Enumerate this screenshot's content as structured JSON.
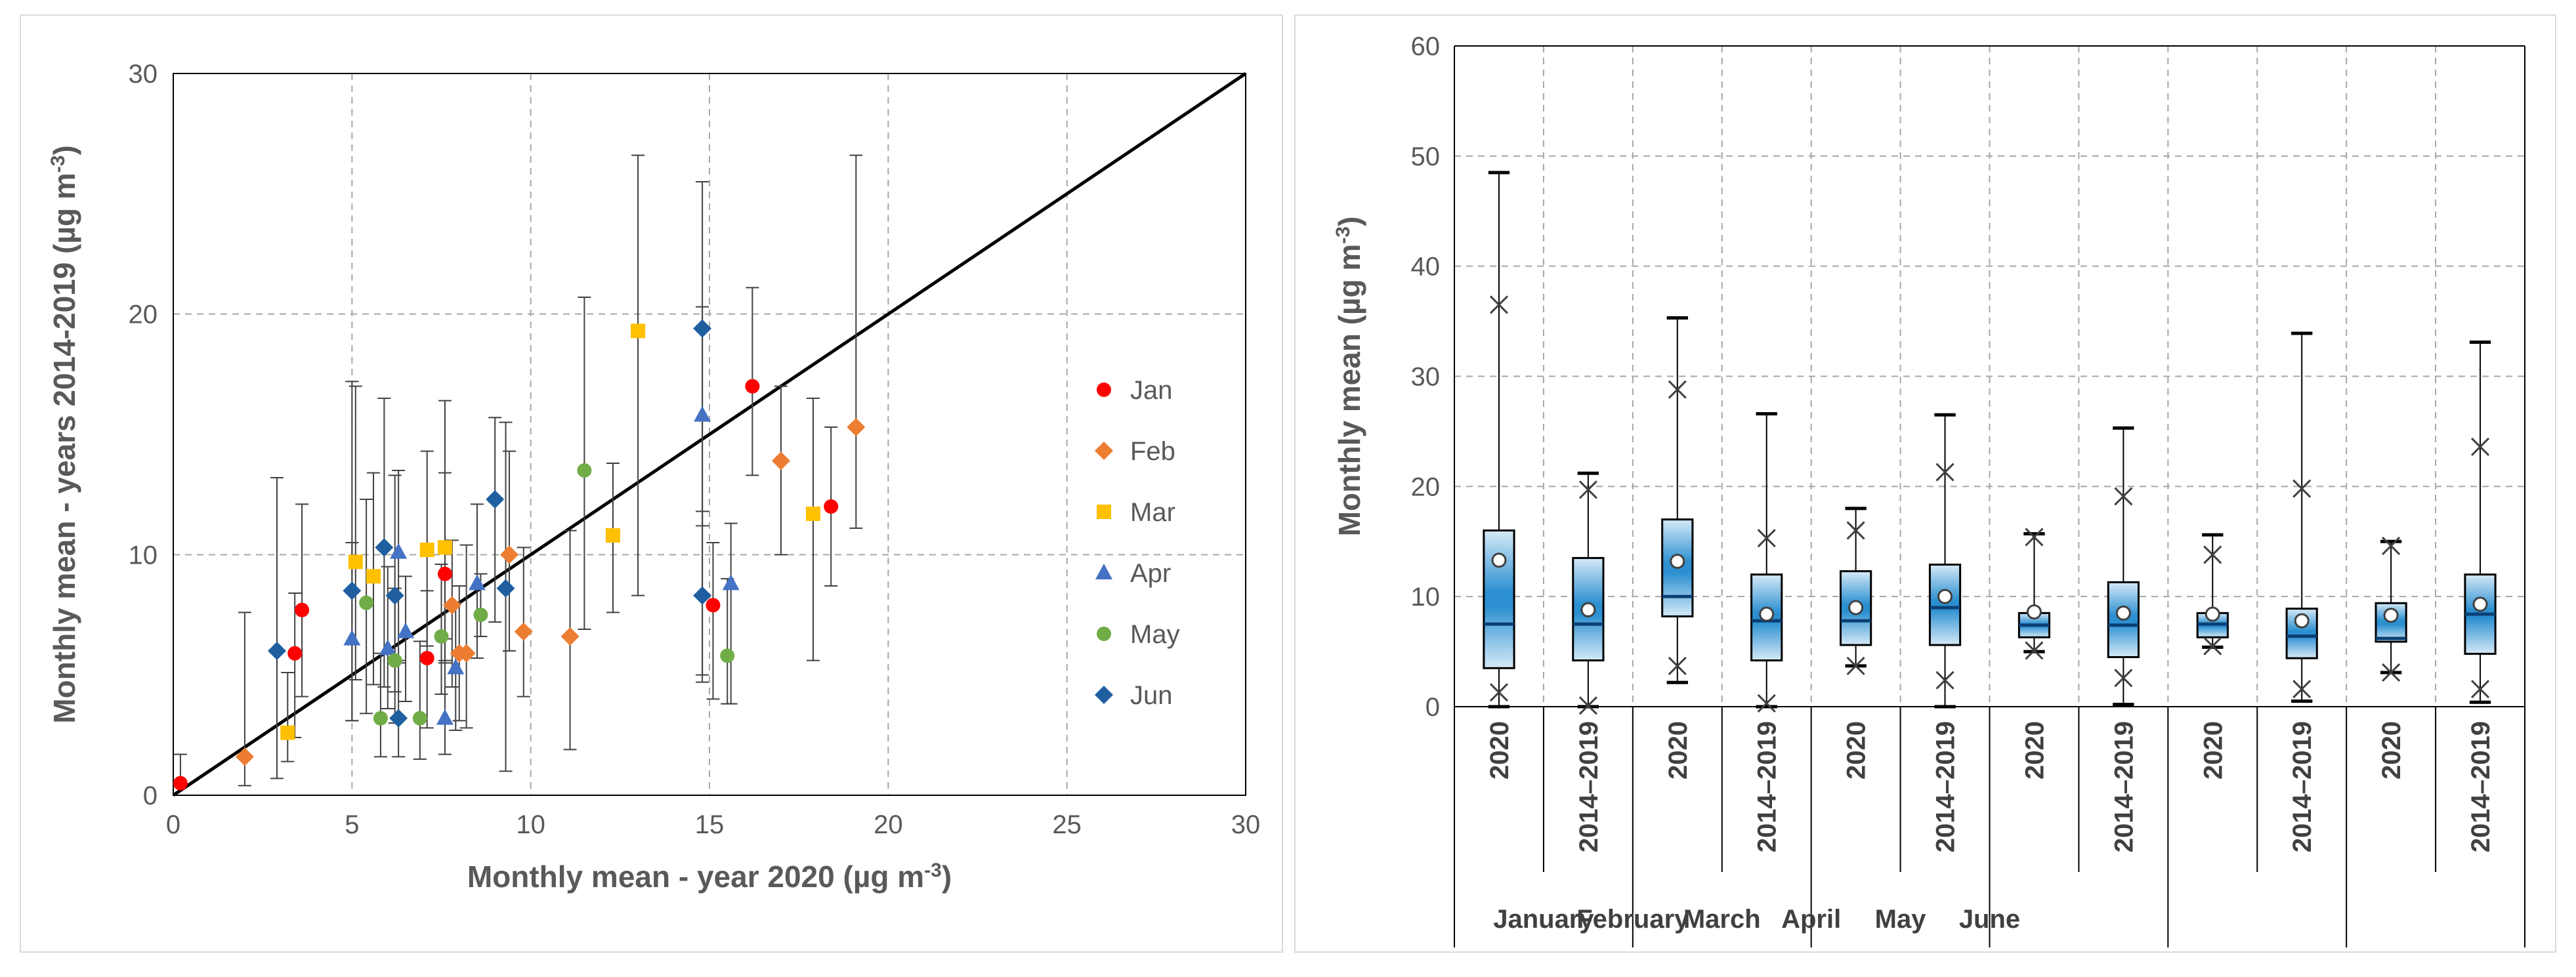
{
  "colors": {
    "jan": "#ff0000",
    "feb": "#ed7d31",
    "mar": "#ffc000",
    "apr": "#4472c4",
    "may": "#70ad47",
    "jun": "#1f5fa0",
    "box_light": "#cfe5f6",
    "box_dark": "#1f86c8",
    "grid": "#a6a6a6",
    "axis": "#000000"
  },
  "chart_data": [
    {
      "type": "scatter",
      "xlabel": "Monthly mean - year 2020 (µg m⁻³)",
      "ylabel": "Monthly mean - years 2014-2019 (µg m⁻³)",
      "xlim": [
        0,
        30
      ],
      "ylim": [
        0,
        30
      ],
      "xticks": [
        "0",
        "5",
        "10",
        "15",
        "20",
        "25",
        "30"
      ],
      "yticks": [
        "0",
        "10",
        "20",
        "30"
      ],
      "grid": "dashed",
      "reference_line": "1:1",
      "legend_position": "right",
      "series": [
        {
          "name": "Jan",
          "marker": "circle",
          "color": "#ff0000",
          "points": [
            [
              0.2,
              0.5,
              0,
              1.2
            ],
            [
              3.4,
              5.9,
              3.5,
              2.5
            ],
            [
              3.6,
              7.7,
              3.6,
              4.4
            ],
            [
              7.6,
              9.2,
              3.7,
              4.2
            ],
            [
              7.1,
              5.7,
              2.9,
              2.8
            ],
            [
              15.1,
              7.9,
              3.9,
              2.6
            ],
            [
              16.2,
              17.0,
              3.7,
              4.1
            ],
            [
              18.4,
              12.0,
              3.3,
              3.3
            ]
          ]
        },
        {
          "name": "Feb",
          "marker": "diamond",
          "color": "#ed7d31",
          "points": [
            [
              2.0,
              1.6,
              1.2,
              6.0
            ],
            [
              7.8,
              7.9,
              3.4,
              2.7
            ],
            [
              8.0,
              5.9,
              2.8,
              2.8
            ],
            [
              8.2,
              5.9,
              3.1,
              4.5
            ],
            [
              9.4,
              10.0,
              4.0,
              4.3
            ],
            [
              9.8,
              6.8,
              2.7,
              3.5
            ],
            [
              11.1,
              6.6,
              4.7,
              4.4
            ],
            [
              17.0,
              13.9,
              3.9,
              3.1
            ],
            [
              19.1,
              15.3,
              4.2,
              11.3
            ]
          ]
        },
        {
          "name": "Mar",
          "marker": "square",
          "color": "#ffc000",
          "points": [
            [
              3.2,
              2.6,
              1.2,
              2.5
            ],
            [
              5.1,
              9.7,
              4.9,
              7.3
            ],
            [
              5.6,
              9.1,
              4.5,
              4.3
            ],
            [
              7.1,
              10.2,
              4.0,
              4.1
            ],
            [
              7.6,
              10.3,
              4.7,
              6.1
            ],
            [
              12.3,
              10.8,
              3.2,
              3.0
            ],
            [
              13.0,
              19.3,
              11.0,
              7.3
            ],
            [
              17.9,
              11.7,
              6.1,
              4.8
            ]
          ]
        },
        {
          "name": "Apr",
          "marker": "triangle",
          "color": "#4472c4",
          "points": [
            [
              5.0,
              6.5,
              3.4,
              4.0
            ],
            [
              6.0,
              6.1,
              2.5,
              3.4
            ],
            [
              6.3,
              10.1,
              4.6,
              3.4
            ],
            [
              6.5,
              6.8,
              2.9,
              2.3
            ],
            [
              7.6,
              3.2,
              1.5,
              3.3
            ],
            [
              7.9,
              5.3,
              2.6,
              2.7
            ],
            [
              8.5,
              8.8,
              3.1,
              3.3
            ],
            [
              14.8,
              15.8,
              4.6,
              4.5
            ],
            [
              15.6,
              8.8,
              5.0,
              2.5
            ]
          ]
        },
        {
          "name": "May",
          "marker": "circle",
          "color": "#70ad47",
          "points": [
            [
              5.4,
              8.0,
              4.6,
              4.3
            ],
            [
              5.8,
              3.2,
              1.6,
              2.7
            ],
            [
              6.2,
              5.6,
              2.6,
              3.0
            ],
            [
              6.9,
              3.2,
              1.7,
              3.2
            ],
            [
              7.5,
              6.6,
              2.4,
              3.0
            ],
            [
              8.6,
              7.5,
              0.9,
              1.7
            ],
            [
              11.5,
              13.5,
              6.6,
              7.2
            ],
            [
              15.5,
              5.8,
              2.0,
              3.2
            ]
          ]
        },
        {
          "name": "Jun",
          "marker": "diamond",
          "color": "#1f5fa0",
          "points": [
            [
              2.9,
              6.0,
              5.3,
              7.2
            ],
            [
              5.0,
              8.5,
              5.4,
              8.7
            ],
            [
              5.9,
              10.3,
              5.8,
              6.2
            ],
            [
              6.2,
              8.3,
              4.0,
              5.0
            ],
            [
              6.3,
              3.2,
              1.6,
              2.4
            ],
            [
              9.0,
              12.3,
              5.1,
              3.4
            ],
            [
              9.3,
              8.6,
              7.6,
              6.9
            ],
            [
              14.8,
              8.3,
              3.6,
              3.5
            ],
            [
              14.8,
              19.4,
              14.4,
              6.1
            ]
          ]
        }
      ]
    },
    {
      "type": "box",
      "ylabel": "Monthly mean (µg m⁻³)",
      "ylim": [
        0,
        60
      ],
      "yticks": [
        "0",
        "10",
        "20",
        "30",
        "40",
        "50",
        "60"
      ],
      "grid": "dashed",
      "months": [
        "January",
        "February",
        "March",
        "April",
        "May",
        "June"
      ],
      "boxes": [
        {
          "label": "2020",
          "month": "January",
          "min": 0,
          "q1": 3.5,
          "median": 7.5,
          "q3": 16.0,
          "max": 48.5,
          "mean": 13.3,
          "p5": 1.3,
          "p95": 36.5
        },
        {
          "label": "2014–2019",
          "month": "January",
          "min": 0,
          "q1": 4.2,
          "median": 7.5,
          "q3": 13.5,
          "max": 21.2,
          "mean": 8.8,
          "p5": 0.1,
          "p95": 19.7
        },
        {
          "label": "2020",
          "month": "February",
          "min": 2.2,
          "q1": 8.2,
          "median": 10.0,
          "q3": 17.0,
          "max": 35.3,
          "mean": 13.2,
          "p5": 3.7,
          "p95": 28.8
        },
        {
          "label": "2014–2019",
          "month": "February",
          "min": 0,
          "q1": 4.2,
          "median": 7.8,
          "q3": 12.0,
          "max": 26.6,
          "mean": 8.4,
          "p5": 0.3,
          "p95": 15.3
        },
        {
          "label": "2020",
          "month": "March",
          "min": 3.7,
          "q1": 5.6,
          "median": 7.8,
          "q3": 12.3,
          "max": 18.0,
          "mean": 9.0,
          "p5": 3.7,
          "p95": 16.0
        },
        {
          "label": "2014–2019",
          "month": "March",
          "min": 0,
          "q1": 5.6,
          "median": 9.0,
          "q3": 12.9,
          "max": 26.5,
          "mean": 10.0,
          "p5": 2.4,
          "p95": 21.3
        },
        {
          "label": "2020",
          "month": "April",
          "min": 5.0,
          "q1": 6.3,
          "median": 7.4,
          "q3": 8.5,
          "max": 15.7,
          "mean": 8.6,
          "p5": 5.1,
          "p95": 15.4
        },
        {
          "label": "2014–2019",
          "month": "April",
          "min": 0.2,
          "q1": 4.5,
          "median": 7.4,
          "q3": 11.3,
          "max": 25.3,
          "mean": 8.5,
          "p5": 2.6,
          "p95": 19.1
        },
        {
          "label": "2020",
          "month": "May",
          "min": 5.4,
          "q1": 6.3,
          "median": 7.5,
          "q3": 8.5,
          "max": 15.6,
          "mean": 8.4,
          "p5": 5.5,
          "p95": 13.8
        },
        {
          "label": "2014–2019",
          "month": "May",
          "min": 0.5,
          "q1": 4.4,
          "median": 6.4,
          "q3": 8.9,
          "max": 33.9,
          "mean": 7.8,
          "p5": 1.6,
          "p95": 19.8
        },
        {
          "label": "2020",
          "month": "June",
          "min": 3.1,
          "q1": 5.9,
          "median": 6.2,
          "q3": 9.4,
          "max": 15.0,
          "mean": 8.3,
          "p5": 3.1,
          "p95": 14.6
        },
        {
          "label": "2014–2019",
          "month": "June",
          "min": 0.4,
          "q1": 4.8,
          "median": 8.4,
          "q3": 12.0,
          "max": 33.1,
          "mean": 9.3,
          "p5": 1.6,
          "p95": 23.6
        }
      ]
    }
  ]
}
